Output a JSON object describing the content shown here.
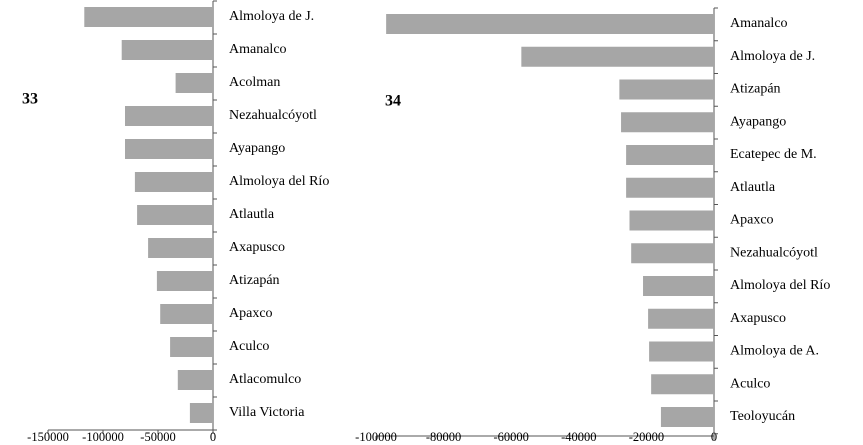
{
  "chart_data": [
    {
      "type": "hbar",
      "title": "33",
      "color": "#a6a6a6",
      "categories": [
        "Almoloya de J.",
        "Amanalco",
        "Acolman",
        "Nezahualcóyotl",
        "Ayapango",
        "Almoloya del Río",
        "Atlautla",
        "Axapusco",
        "Atizapán",
        "Apaxco",
        "Aculco",
        "Atlacomulco",
        "Villa Victoria"
      ],
      "values": [
        -117000,
        -83000,
        -34000,
        -80000,
        -80000,
        -71000,
        -69000,
        -59000,
        -51000,
        -48000,
        -39000,
        -32000,
        -21000
      ],
      "xlim": [
        -150000,
        0
      ],
      "xticks": [
        -150000,
        -100000,
        -50000,
        0
      ]
    },
    {
      "type": "hbar",
      "title": "34",
      "color": "#a6a6a6",
      "categories": [
        "Amanalco",
        "Almoloya de J.",
        "Atizapán",
        "Ayapango",
        "Ecatepec de M.",
        "Atlautla",
        "Apaxco",
        "Nezahualcóyotl",
        "Almoloya del Río",
        "Axapusco",
        "Almoloya de A.",
        "Aculco",
        "Teoloyucán"
      ],
      "values": [
        -97000,
        -57000,
        -28000,
        -27500,
        -26000,
        -26000,
        -25000,
        -24500,
        -21000,
        -19500,
        -19200,
        -18600,
        -15700
      ],
      "xlim": [
        -100000,
        0
      ],
      "xticks": [
        -100000,
        -80000,
        -60000,
        -40000,
        -20000,
        0
      ]
    }
  ]
}
